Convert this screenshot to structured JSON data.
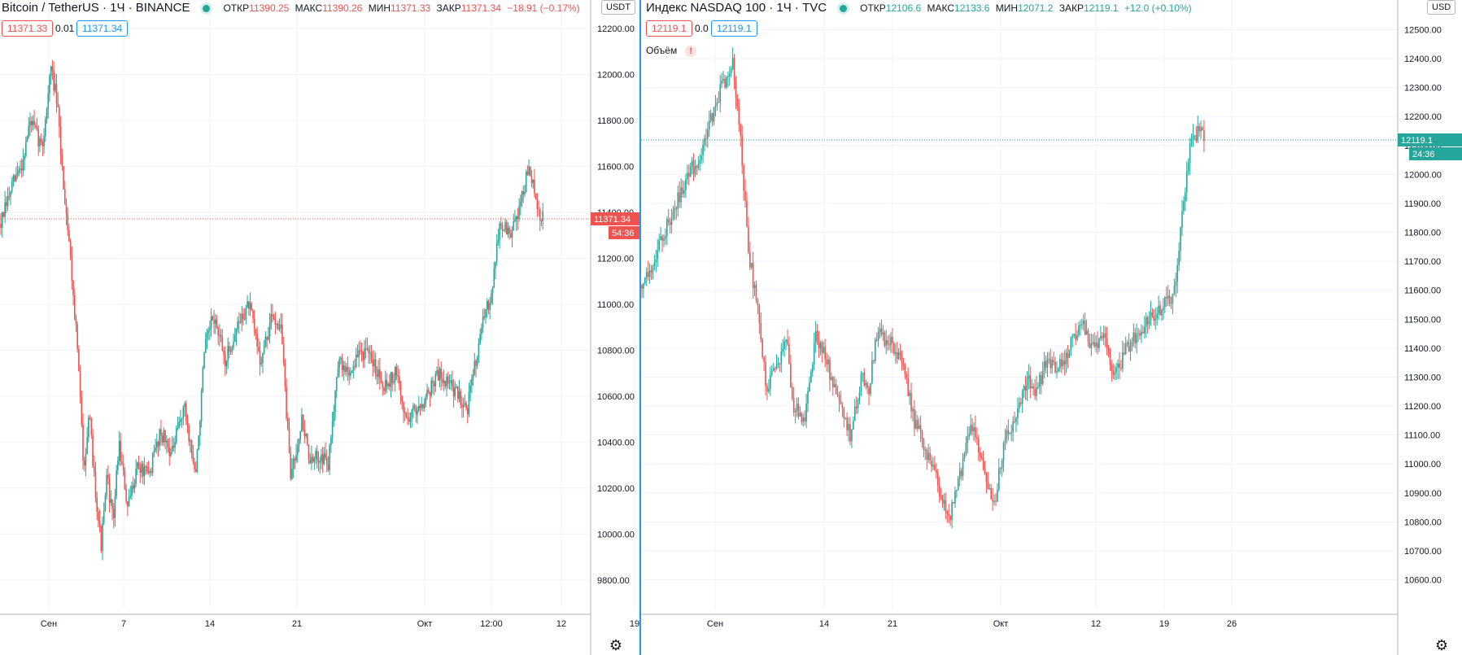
{
  "left": {
    "symbol": "Bitcoin / TetherUS · 1Ч · BINANCE",
    "ohlc": {
      "o_label": "ОТКР",
      "o": "11390.25",
      "h_label": "МАКС",
      "h": "11390.26",
      "l_label": "МИН",
      "l": "11371.33",
      "c_label": "ЗАКР",
      "c": "11371.34",
      "change": "−18.91 (−0.17%)"
    },
    "bid": "11371.33",
    "spread": "0.01",
    "ask": "11371.34",
    "currency": "USDT",
    "last_price": "11371.34",
    "countdown": "54:36",
    "colors": {
      "up": "#26a69a",
      "down": "#ef5350",
      "last": "#ef5350"
    }
  },
  "right": {
    "symbol": "Индекс NASDAQ 100 · 1Ч · TVC",
    "ohlc": {
      "o_label": "ОТКР",
      "o": "12106.6",
      "h_label": "МАКС",
      "h": "12133.6",
      "l_label": "МИН",
      "l": "12071.2",
      "c_label": "ЗАКР",
      "c": "12119.1",
      "change": "+12.0 (+0.10%)"
    },
    "bid": "12119.1",
    "spread": "0.0",
    "ask": "12119.1",
    "volume_label": "Объём",
    "currency": "USD",
    "last_price": "12119.1",
    "countdown": "24:36",
    "colors": {
      "up": "#26a69a",
      "down": "#ef5350",
      "last": "#26a69a"
    }
  },
  "chart_data": [
    {
      "type": "candlestick",
      "title": "Bitcoin / TetherUS · 1Ч · BINANCE",
      "ylim": [
        9700,
        12260
      ],
      "y_ticks": [
        "12200.00",
        "12000.00",
        "11800.00",
        "11600.00",
        "11400.00",
        "11200.00",
        "11000.00",
        "10800.00",
        "10600.00",
        "10400.00",
        "10200.00",
        "10000.00",
        "9800.00"
      ],
      "x_ticks": [
        "Сен",
        "7",
        "14",
        "21",
        "Окт",
        "12:00",
        "12",
        "19"
      ],
      "last_price": 11371.34,
      "price_path": [
        [
          0,
          11350
        ],
        [
          0.02,
          11520
        ],
        [
          0.035,
          11600
        ],
        [
          0.05,
          11800
        ],
        [
          0.07,
          11680
        ],
        [
          0.085,
          12030
        ],
        [
          0.095,
          11880
        ],
        [
          0.105,
          11550
        ],
        [
          0.115,
          11300
        ],
        [
          0.13,
          10800
        ],
        [
          0.14,
          10300
        ],
        [
          0.15,
          10500
        ],
        [
          0.16,
          10200
        ],
        [
          0.17,
          9950
        ],
        [
          0.18,
          10250
        ],
        [
          0.19,
          10050
        ],
        [
          0.2,
          10400
        ],
        [
          0.215,
          10100
        ],
        [
          0.23,
          10300
        ],
        [
          0.25,
          10250
        ],
        [
          0.27,
          10450
        ],
        [
          0.29,
          10350
        ],
        [
          0.31,
          10560
        ],
        [
          0.33,
          10250
        ],
        [
          0.345,
          10800
        ],
        [
          0.36,
          10950
        ],
        [
          0.38,
          10750
        ],
        [
          0.4,
          10900
        ],
        [
          0.42,
          11000
        ],
        [
          0.44,
          10750
        ],
        [
          0.46,
          10950
        ],
        [
          0.475,
          10900
        ],
        [
          0.49,
          10250
        ],
        [
          0.51,
          10500
        ],
        [
          0.525,
          10300
        ],
        [
          0.54,
          10350
        ],
        [
          0.555,
          10300
        ],
        [
          0.57,
          10750
        ],
        [
          0.59,
          10700
        ],
        [
          0.61,
          10800
        ],
        [
          0.63,
          10750
        ],
        [
          0.65,
          10650
        ],
        [
          0.67,
          10700
        ],
        [
          0.685,
          10500
        ],
        [
          0.705,
          10550
        ],
        [
          0.72,
          10600
        ],
        [
          0.74,
          10700
        ],
        [
          0.76,
          10650
        ],
        [
          0.79,
          10550
        ],
        [
          0.81,
          10850
        ],
        [
          0.83,
          11050
        ],
        [
          0.845,
          11350
        ],
        [
          0.865,
          11300
        ],
        [
          0.88,
          11450
        ],
        [
          0.895,
          11600
        ],
        [
          0.91,
          11380
        ],
        [
          0.92,
          11370
        ]
      ]
    },
    {
      "type": "candlestick",
      "title": "Индекс NASDAQ 100 · 1Ч · TVC",
      "ylim": [
        10520,
        12580
      ],
      "y_ticks": [
        "12500.00",
        "12400.00",
        "12300.00",
        "12200.00",
        "12100.00",
        "12000.00",
        "11900.00",
        "11800.00",
        "11700.00",
        "11600.00",
        "11500.00",
        "11400.00",
        "11300.00",
        "11200.00",
        "11100.00",
        "11000.00",
        "10900.00",
        "10800.00",
        "10700.00",
        "10600.00"
      ],
      "x_ticks": [
        "Сен",
        "14",
        "21",
        "Окт",
        "12",
        "19",
        "26"
      ],
      "last_price": 12119.1,
      "price_path": [
        [
          0,
          11620
        ],
        [
          0.015,
          11700
        ],
        [
          0.03,
          11800
        ],
        [
          0.045,
          11900
        ],
        [
          0.06,
          12000
        ],
        [
          0.075,
          12050
        ],
        [
          0.09,
          12180
        ],
        [
          0.105,
          12300
        ],
        [
          0.12,
          12380
        ],
        [
          0.13,
          12150
        ],
        [
          0.14,
          11750
        ],
        [
          0.155,
          11500
        ],
        [
          0.165,
          11250
        ],
        [
          0.18,
          11350
        ],
        [
          0.19,
          11450
        ],
        [
          0.2,
          11200
        ],
        [
          0.215,
          11150
        ],
        [
          0.23,
          11450
        ],
        [
          0.245,
          11350
        ],
        [
          0.26,
          11200
        ],
        [
          0.275,
          11100
        ],
        [
          0.29,
          11300
        ],
        [
          0.3,
          11250
        ],
        [
          0.31,
          11450
        ],
        [
          0.33,
          11420
        ],
        [
          0.345,
          11350
        ],
        [
          0.36,
          11150
        ],
        [
          0.375,
          11050
        ],
        [
          0.39,
          10950
        ],
        [
          0.405,
          10800
        ],
        [
          0.42,
          10950
        ],
        [
          0.435,
          11150
        ],
        [
          0.45,
          11000
        ],
        [
          0.465,
          10850
        ],
        [
          0.48,
          11100
        ],
        [
          0.495,
          11150
        ],
        [
          0.51,
          11300
        ],
        [
          0.52,
          11250
        ],
        [
          0.535,
          11350
        ],
        [
          0.55,
          11330
        ],
        [
          0.565,
          11400
        ],
        [
          0.58,
          11500
        ],
        [
          0.595,
          11400
        ],
        [
          0.61,
          11450
        ],
        [
          0.625,
          11300
        ],
        [
          0.64,
          11400
        ],
        [
          0.655,
          11450
        ],
        [
          0.67,
          11500
        ],
        [
          0.69,
          11550
        ],
        [
          0.705,
          11600
        ],
        [
          0.715,
          11900
        ],
        [
          0.725,
          12100
        ],
        [
          0.735,
          12150
        ],
        [
          0.745,
          12120
        ]
      ]
    }
  ]
}
